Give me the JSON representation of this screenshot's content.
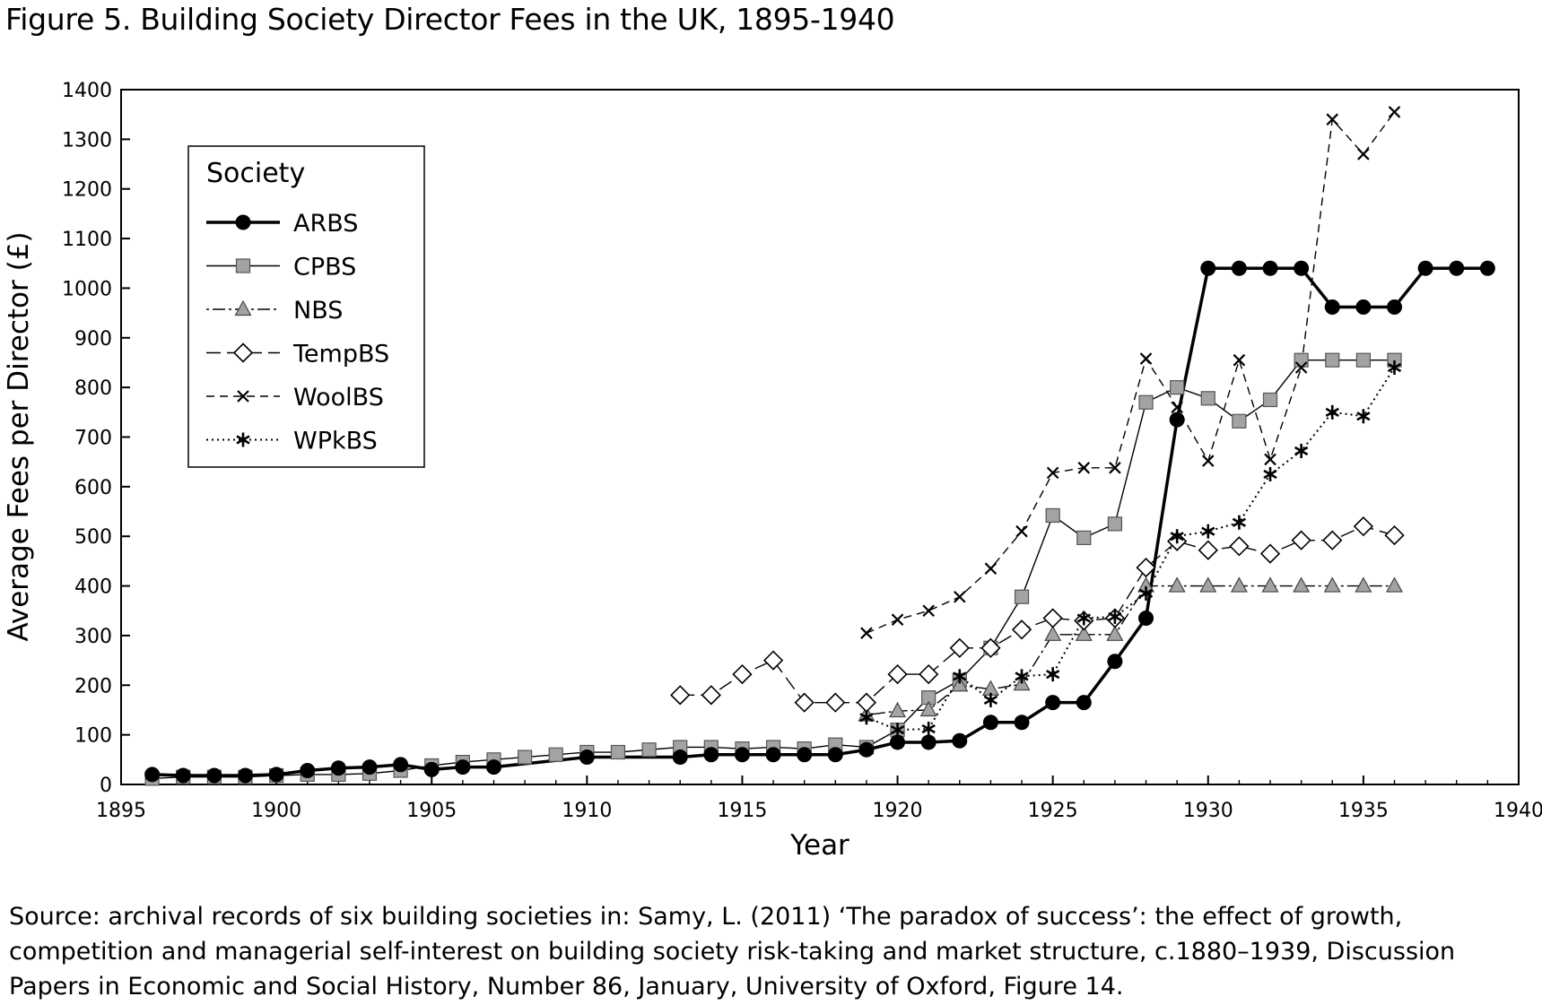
{
  "figure_title": "Figure 5.  Building Society Director Fees in the  UK, 1895-1940",
  "source_note": "Source: archival records of six building societies in: Samy, L. (2011) ‘The paradox of success’: the effect of growth, competition and managerial self-interest on building society risk-taking and market structure, c.1880–1939, Discussion Papers in Economic and Social History, Number 86, January, University of Oxford, Figure 14.",
  "chart_data": {
    "type": "line",
    "title": "Figure 5.  Building Society Director Fees in the  UK, 1895-1940",
    "xlabel": "Year",
    "ylabel": "Average Fees per Director (£)",
    "xlim": [
      1895,
      1940
    ],
    "ylim": [
      0,
      1400
    ],
    "xticks": [
      1895,
      1900,
      1905,
      1910,
      1915,
      1920,
      1925,
      1930,
      1935,
      1940
    ],
    "yticks": [
      0,
      100,
      200,
      300,
      400,
      500,
      600,
      700,
      800,
      900,
      1000,
      1100,
      1200,
      1300,
      1400
    ],
    "grid": false,
    "legend": {
      "title": "Society",
      "position": "top-left"
    },
    "series": [
      {
        "name": "ARBS",
        "marker": "circle",
        "line": "solid-thick",
        "x": [
          1896,
          1897,
          1898,
          1899,
          1900,
          1901,
          1902,
          1903,
          1904,
          1905,
          1906,
          1907,
          1910,
          1913,
          1914,
          1915,
          1916,
          1917,
          1918,
          1919,
          1920,
          1921,
          1922,
          1923,
          1924,
          1925,
          1926,
          1927,
          1928,
          1929,
          1930,
          1931,
          1932,
          1933,
          1934,
          1935,
          1936,
          1937,
          1938,
          1939
        ],
        "y": [
          20,
          18,
          18,
          18,
          20,
          28,
          33,
          35,
          40,
          30,
          35,
          35,
          55,
          55,
          60,
          60,
          60,
          60,
          60,
          70,
          85,
          85,
          88,
          125,
          125,
          165,
          165,
          248,
          335,
          735,
          1040,
          1040,
          1040,
          1040,
          962,
          962,
          962,
          1040,
          1040,
          1040
        ]
      },
      {
        "name": "CPBS",
        "marker": "square",
        "line": "solid",
        "x": [
          1896,
          1897,
          1898,
          1899,
          1900,
          1901,
          1902,
          1903,
          1904,
          1905,
          1906,
          1907,
          1908,
          1909,
          1910,
          1911,
          1912,
          1913,
          1914,
          1915,
          1916,
          1917,
          1918,
          1919,
          1920,
          1921,
          1922,
          1923,
          1924,
          1925,
          1926,
          1927,
          1928,
          1929,
          1930,
          1931,
          1932,
          1933,
          1934,
          1935,
          1936
        ],
        "y": [
          12,
          15,
          15,
          15,
          18,
          20,
          20,
          22,
          28,
          38,
          45,
          50,
          55,
          60,
          65,
          65,
          70,
          75,
          75,
          72,
          75,
          72,
          80,
          75,
          110,
          175,
          210,
          275,
          378,
          542,
          497,
          525,
          770,
          800,
          778,
          732,
          775,
          855,
          855,
          855,
          855
        ]
      },
      {
        "name": "NBS",
        "marker": "triangle",
        "line": "dash-dot",
        "x": [
          1919,
          1920,
          1921,
          1922,
          1923,
          1924,
          1925,
          1926,
          1927,
          1928,
          1929,
          1930,
          1931,
          1932,
          1933,
          1934,
          1935,
          1936
        ],
        "y": [
          140,
          148,
          150,
          200,
          192,
          202,
          302,
          302,
          302,
          400,
          400,
          400,
          400,
          400,
          400,
          400,
          400,
          400
        ]
      },
      {
        "name": "TempBS",
        "marker": "diamond",
        "line": "long-dash",
        "x": [
          1913,
          1914,
          1915,
          1916,
          1917,
          1918,
          1919,
          1920,
          1921,
          1922,
          1923,
          1924,
          1925,
          1926,
          1927,
          1928,
          1929,
          1930,
          1931,
          1932,
          1933,
          1934,
          1935,
          1936
        ],
        "y": [
          180,
          180,
          222,
          250,
          165,
          165,
          165,
          222,
          222,
          275,
          275,
          312,
          335,
          330,
          335,
          437,
          490,
          472,
          480,
          465,
          492,
          492,
          520,
          502
        ]
      },
      {
        "name": "WoolBS",
        "marker": "x",
        "line": "dashed",
        "x": [
          1919,
          1920,
          1921,
          1922,
          1923,
          1924,
          1925,
          1926,
          1927,
          1928,
          1929,
          1930,
          1931,
          1932,
          1933,
          1934,
          1935,
          1936
        ],
        "y": [
          305,
          332,
          350,
          378,
          435,
          510,
          628,
          638,
          638,
          858,
          760,
          652,
          855,
          655,
          840,
          1340,
          1270,
          1355
        ]
      },
      {
        "name": "WPkBS",
        "marker": "asterisk",
        "line": "dotted",
        "x": [
          1919,
          1920,
          1921,
          1922,
          1923,
          1924,
          1925,
          1926,
          1927,
          1928,
          1929,
          1930,
          1931,
          1932,
          1933,
          1934,
          1935,
          1936
        ],
        "y": [
          135,
          110,
          112,
          218,
          170,
          218,
          222,
          335,
          338,
          385,
          500,
          510,
          528,
          625,
          672,
          750,
          742,
          840
        ]
      }
    ]
  }
}
